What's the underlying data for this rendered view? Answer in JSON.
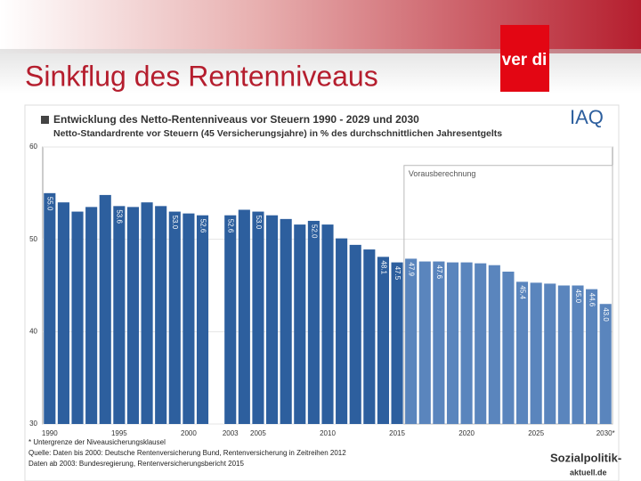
{
  "header": {
    "title": "Sinkflug des Rentenniveaus",
    "logo": "ver di"
  },
  "chart_data": {
    "type": "bar",
    "title": "Entwicklung des Netto-Rentenniveaus vor Steuern 1990 - 2029 und 2030",
    "subtitle": "Netto-Standardrente vor Steuern (45 Versicherungsjahre) in % des durchschnittlichen Jahresentgelts",
    "logo": "IAQ",
    "x": [
      1990,
      1991,
      1992,
      1993,
      1994,
      1995,
      1996,
      1997,
      1998,
      1999,
      2000,
      2001,
      2002,
      2003,
      2004,
      2005,
      2006,
      2007,
      2008,
      2009,
      2010,
      2011,
      2012,
      2013,
      2014,
      2015,
      2016,
      2017,
      2018,
      2019,
      2020,
      2021,
      2022,
      2023,
      2024,
      2025,
      2026,
      2027,
      2028,
      2029,
      2030
    ],
    "values": [
      55.0,
      54.0,
      53.0,
      53.5,
      54.8,
      53.6,
      53.5,
      54.0,
      53.6,
      53.0,
      52.8,
      52.6,
      null,
      52.6,
      53.2,
      53.0,
      52.6,
      52.2,
      51.6,
      52.0,
      51.6,
      50.1,
      49.4,
      48.9,
      48.1,
      47.5,
      47.9,
      47.6,
      47.6,
      47.5,
      47.5,
      47.4,
      47.2,
      46.5,
      45.4,
      45.3,
      45.2,
      45.0,
      45.0,
      44.6,
      43.0
    ],
    "value_labels": [
      "55.0",
      null,
      null,
      null,
      null,
      "53.6",
      null,
      null,
      null,
      "53.0",
      null,
      "52.6",
      null,
      "52.6",
      null,
      "53.0",
      null,
      null,
      null,
      "52.0",
      null,
      null,
      null,
      null,
      "48.1",
      "47.5",
      "47.9",
      null,
      "47.6",
      null,
      null,
      null,
      null,
      null,
      "45.4",
      null,
      null,
      null,
      "45.0",
      "44.6",
      "43.0"
    ],
    "color": "#2d5f9e",
    "projection": {
      "label": "Vorausberechnung",
      "from": 2016,
      "to": 2030,
      "color": "#5a85bd"
    },
    "xlim": [
      1989.5,
      2030.5
    ],
    "xticks": [
      1990,
      1995,
      2000,
      2003,
      2005,
      2010,
      2015,
      2020,
      2025,
      {
        "value": 2030,
        "label": "2030*"
      }
    ],
    "ylim": [
      30,
      60
    ],
    "yticks": [
      30,
      40,
      50,
      60
    ],
    "grid": true
  },
  "footer": {
    "notes": [
      "* Untergrenze der Niveausicherungsklausel",
      "Quelle: Daten bis 2000: Deutsche Rentenversicherung Bund, Rentenversicherung in Zeitreihen 2012",
      "Daten ab 2003: Bundesregierung, Rentenversicherungsbericht 2015"
    ],
    "logo": [
      "Sozialpolitik-",
      "aktuell.de"
    ]
  }
}
